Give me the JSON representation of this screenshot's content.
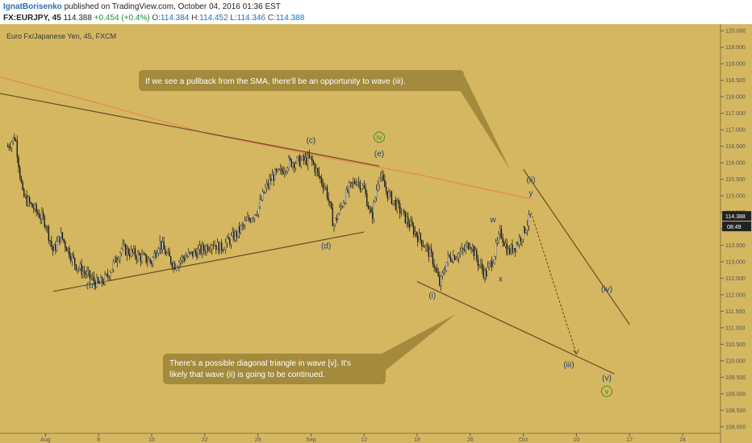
{
  "header": {
    "author": "IgnatBorisenko",
    "published": "published on TradingView.com, October 04, 2016 01:36 EST",
    "symbol": "FX:EURJPY, 45",
    "last": "114.388",
    "change": "+0.454 (+0.4%)",
    "o_label": "O:",
    "o_value": "114.384",
    "h_label": "H:",
    "h_value": "114.452",
    "l_label": "L:",
    "l_value": "114.346",
    "c_label": "C:",
    "c_value": "114.388"
  },
  "colors": {
    "background": "#d4b760",
    "candles": "#1a1a1a",
    "sma": "#e8835a",
    "trendline": "#6e4a24",
    "annotation_bg": "#a38a3c",
    "wave_label": "#1c3f70",
    "wave_label_circled": "#3a8a2a",
    "price_badge": "#222222"
  },
  "chart_data": {
    "type": "candlestick",
    "title": "Euro Fx/Japanese Yen, 45, FXCM",
    "ylim": [
      107.8,
      120.2
    ],
    "y_ticks": [
      "120.000",
      "119.500",
      "119.000",
      "118.500",
      "118.000",
      "117.500",
      "117.000",
      "116.500",
      "116.000",
      "115.500",
      "115.000",
      "114.500",
      "114.000",
      "113.500",
      "113.000",
      "112.500",
      "112.000",
      "111.500",
      "111.000",
      "110.500",
      "110.000",
      "109.500",
      "109.000",
      "108.500",
      "108.000"
    ],
    "x_ticks": [
      "Aug",
      "8",
      "15",
      "22",
      "29",
      "Sep",
      "12",
      "19",
      "26",
      "Oct",
      "10",
      "17",
      "24"
    ],
    "x_range": [
      "2016-07-26",
      "2016-10-29"
    ],
    "last_price": "114.388",
    "countdown": "08:49",
    "price_path": [
      [
        "2016-07-27",
        116.5
      ],
      [
        "2016-07-28",
        116.8
      ],
      [
        "2016-07-29",
        115.0
      ],
      [
        "2016-08-01",
        114.2
      ],
      [
        "2016-08-02",
        113.3
      ],
      [
        "2016-08-03",
        113.8
      ],
      [
        "2016-08-05",
        112.9
      ],
      [
        "2016-08-08",
        112.3
      ],
      [
        "2016-08-09",
        112.5
      ],
      [
        "2016-08-11",
        113.4
      ],
      [
        "2016-08-12",
        113.3
      ],
      [
        "2016-08-15",
        113.0
      ],
      [
        "2016-08-16",
        113.6
      ],
      [
        "2016-08-17",
        113.2
      ],
      [
        "2016-08-18",
        112.9
      ],
      [
        "2016-08-19",
        113.1
      ],
      [
        "2016-08-22",
        113.4
      ],
      [
        "2016-08-23",
        113.6
      ],
      [
        "2016-08-24",
        113.4
      ],
      [
        "2016-08-25",
        113.6
      ],
      [
        "2016-08-26",
        113.8
      ],
      [
        "2016-08-29",
        114.6
      ],
      [
        "2016-08-30",
        115.2
      ],
      [
        "2016-08-31",
        115.6
      ],
      [
        "2016-09-01",
        115.7
      ],
      [
        "2016-09-02",
        116.0
      ],
      [
        "2016-09-05",
        116.1
      ],
      [
        "2016-09-06",
        115.6
      ],
      [
        "2016-09-07",
        115.2
      ],
      [
        "2016-09-08",
        114.1
      ],
      [
        "2016-09-09",
        114.7
      ],
      [
        "2016-09-10",
        115.2
      ],
      [
        "2016-09-11",
        115.5
      ],
      [
        "2016-09-12",
        115.2
      ],
      [
        "2016-09-13",
        114.3
      ],
      [
        "2016-09-14",
        115.7
      ],
      [
        "2016-09-15",
        115.1
      ],
      [
        "2016-09-16",
        114.8
      ],
      [
        "2016-09-19",
        113.8
      ],
      [
        "2016-09-20",
        113.5
      ],
      [
        "2016-09-21",
        113.1
      ],
      [
        "2016-09-22",
        112.3
      ],
      [
        "2016-09-23",
        113.1
      ],
      [
        "2016-09-25",
        113.3
      ],
      [
        "2016-09-26",
        113.6
      ],
      [
        "2016-09-27",
        113.0
      ],
      [
        "2016-09-28",
        112.6
      ],
      [
        "2016-09-29",
        113.1
      ],
      [
        "2016-09-30",
        113.9
      ],
      [
        "2016-10-01",
        113.3
      ],
      [
        "2016-10-02",
        113.5
      ],
      [
        "2016-10-03",
        113.9
      ],
      [
        "2016-10-04",
        114.4
      ]
    ],
    "sma_path": [
      [
        "2016-07-26",
        118.6
      ],
      [
        "2016-08-08",
        117.8
      ],
      [
        "2016-08-22",
        116.9
      ],
      [
        "2016-09-05",
        116.25
      ],
      [
        "2016-09-19",
        115.65
      ],
      [
        "2016-09-26",
        115.3
      ],
      [
        "2016-10-04",
        114.9
      ]
    ],
    "waves": [
      {
        "label": "(b)",
        "date": "2016-08-07",
        "price": 112.2,
        "circled": false
      },
      {
        "label": "(c)",
        "date": "2016-09-05",
        "price": 116.6,
        "circled": false
      },
      {
        "label": "(d)",
        "date": "2016-09-07",
        "price": 113.4,
        "circled": false
      },
      {
        "label": "iv",
        "date": "2016-09-14",
        "price": 116.7,
        "circled": true
      },
      {
        "label": "(e)",
        "date": "2016-09-14",
        "price": 116.2,
        "circled": false
      },
      {
        "label": "(i)",
        "date": "2016-09-21",
        "price": 111.9,
        "circled": false
      },
      {
        "label": "w",
        "date": "2016-09-29",
        "price": 114.2,
        "circled": false
      },
      {
        "label": "x",
        "date": "2016-09-30",
        "price": 112.4,
        "circled": false
      },
      {
        "label": "(ii)",
        "date": "2016-10-04",
        "price": 115.4,
        "circled": false
      },
      {
        "label": "y",
        "date": "2016-10-04",
        "price": 115.0,
        "circled": false
      },
      {
        "label": "(iii)",
        "date": "2016-10-09",
        "price": 109.8,
        "circled": false
      },
      {
        "label": "(iv)",
        "date": "2016-10-14",
        "price": 112.1,
        "circled": false
      },
      {
        "label": "(v)",
        "date": "2016-10-14",
        "price": 109.4,
        "circled": false
      },
      {
        "label": "v",
        "date": "2016-10-14",
        "price": 109.0,
        "circled": true
      }
    ],
    "trendlines": [
      {
        "from": [
          "2016-07-26",
          118.1
        ],
        "to": [
          "2016-09-14",
          115.9
        ]
      },
      {
        "from": [
          "2016-08-02",
          112.1
        ],
        "to": [
          "2016-09-12",
          113.9
        ]
      },
      {
        "from": [
          "2016-09-19",
          112.4
        ],
        "to": [
          "2016-10-15",
          109.6
        ]
      },
      {
        "from": [
          "2016-10-03",
          115.8
        ],
        "to": [
          "2016-10-17",
          111.1
        ]
      }
    ],
    "projection": {
      "from": [
        "2016-10-04",
        114.5
      ],
      "to": [
        "2016-10-10",
        110.2
      ]
    },
    "annotations": [
      "If we see a pullback from the SMA, there'll be an opportunity to wave (iii).",
      "There's a possible diagonal triangle in wave [v]. It's",
      "likely that wave (ii) is going to be continued."
    ]
  }
}
